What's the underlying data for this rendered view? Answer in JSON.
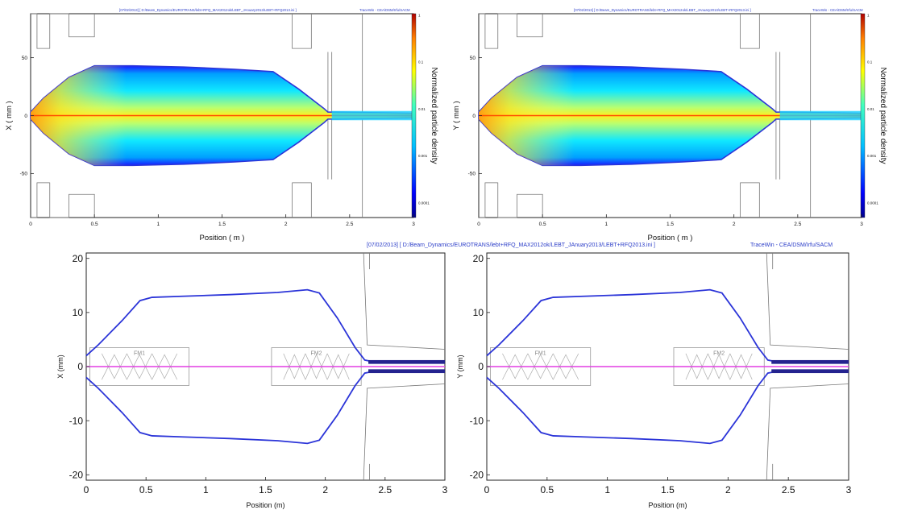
{
  "figure": {
    "header_date_path_small": "[07/02/2013] [ D:/Beam_Dynamics/EUROTRANS/lebt+RFQ_MAX2012ok/LEBT_JAnuary2013/LEBT+RFQ2013.ini ]",
    "header_program_small": "TraceWin - CEA/DSM/Irfu/SACM",
    "header_date_path": "[07/02/2013] [ D:/Beam_Dynamics/EUROTRANS/lebt+RFQ_MAX2012ok/LEBT_JAnuary2013/LEBT+RFQ2013.ini ]",
    "header_program": "TraceWin - CEA/DSM/Irfu/SACM",
    "colorbar_label": "Normalized particle density",
    "colorbar_ticks": [
      "1",
      "0.1",
      "0.01",
      "0.001",
      "0.0001"
    ],
    "element_labels": [
      "FM1",
      "FM2"
    ],
    "colors": {
      "envelope": "#2b34d8",
      "axis_line": "#e23fe3",
      "header_text": "#2a3cc8",
      "chamber": "#777777"
    }
  },
  "chart_data": [
    {
      "type": "heatmap",
      "title": "",
      "xlabel": "Position ( m )",
      "ylabel": "X ( mm )",
      "xlim": [
        0,
        3
      ],
      "ylim": [
        -88,
        88
      ],
      "xticks": [
        0,
        0.5,
        1,
        1.5,
        2,
        2.5,
        3
      ],
      "yticks": [
        -50,
        0,
        50
      ],
      "colorbar": {
        "label": "Normalized particle density",
        "scale": "log",
        "range": [
          0.0001,
          1
        ]
      },
      "envelope_upper": {
        "x": [
          0,
          0.1,
          0.3,
          0.5,
          0.8,
          1.2,
          1.6,
          1.9,
          2.1,
          2.3,
          2.33,
          2.4,
          3.0
        ],
        "y": [
          3,
          15,
          33,
          43,
          43,
          42,
          40,
          38,
          23,
          6,
          3,
          3,
          2
        ]
      },
      "envelope_lower": {
        "x": [
          0,
          0.1,
          0.3,
          0.5,
          0.8,
          1.2,
          1.6,
          1.9,
          2.1,
          2.3,
          2.33,
          2.4,
          3.0
        ],
        "y": [
          -3,
          -15,
          -33,
          -43,
          -43,
          -42,
          -40,
          -38,
          -23,
          -6,
          -3,
          -3,
          -2
        ]
      }
    },
    {
      "type": "heatmap",
      "title": "",
      "xlabel": "Position ( m )",
      "ylabel": "Y ( mm )",
      "xlim": [
        0,
        3
      ],
      "ylim": [
        -88,
        88
      ],
      "xticks": [
        0,
        0.5,
        1,
        1.5,
        2,
        2.5,
        3
      ],
      "yticks": [
        -50,
        0,
        50
      ],
      "colorbar": {
        "label": "Normalized particle density",
        "scale": "log",
        "range": [
          0.0001,
          1
        ]
      },
      "envelope_upper": {
        "x": [
          0,
          0.1,
          0.3,
          0.5,
          0.8,
          1.2,
          1.6,
          1.9,
          2.1,
          2.3,
          2.33,
          2.4,
          3.0
        ],
        "y": [
          3,
          15,
          33,
          43,
          43,
          42,
          40,
          38,
          23,
          6,
          3,
          3,
          2
        ]
      },
      "envelope_lower": {
        "x": [
          0,
          0.1,
          0.3,
          0.5,
          0.8,
          1.2,
          1.6,
          1.9,
          2.1,
          2.3,
          2.33,
          2.4,
          3.0
        ],
        "y": [
          -3,
          -15,
          -33,
          -43,
          -43,
          -42,
          -40,
          -38,
          -23,
          -6,
          -3,
          -3,
          -2
        ]
      }
    },
    {
      "type": "line",
      "title": "",
      "xlabel": "Position (m)",
      "ylabel": "X (mm)",
      "xlim": [
        0,
        3
      ],
      "ylim": [
        -21,
        21
      ],
      "xticks": [
        0,
        0.5,
        1,
        1.5,
        2,
        2.5,
        3
      ],
      "yticks": [
        -20,
        -10,
        0,
        10,
        20
      ],
      "series": [
        {
          "x": [
            0,
            0.1,
            0.3,
            0.45,
            0.55,
            0.8,
            1.2,
            1.6,
            1.85,
            1.95,
            2.1,
            2.25,
            2.33,
            2.4,
            3.0
          ],
          "y": [
            2,
            4,
            8.5,
            12.2,
            12.8,
            13,
            13.3,
            13.7,
            14.2,
            13.6,
            9,
            3.5,
            1.2,
            0.9,
            0.9
          ]
        },
        {
          "x": [
            0,
            0.1,
            0.3,
            0.45,
            0.55,
            0.8,
            1.2,
            1.6,
            1.85,
            1.95,
            2.1,
            2.25,
            2.33,
            2.4,
            3.0
          ],
          "y": [
            -2,
            -4,
            -8.5,
            -12.2,
            -12.8,
            -13,
            -13.3,
            -13.7,
            -14.2,
            -13.6,
            -9,
            -3.5,
            -1.2,
            -0.9,
            -0.9
          ]
        }
      ]
    },
    {
      "type": "line",
      "title": "",
      "xlabel": "Position (m)",
      "ylabel": "Y (mm)",
      "xlim": [
        0,
        3
      ],
      "ylim": [
        -21,
        21
      ],
      "xticks": [
        0,
        0.5,
        1,
        1.5,
        2,
        2.5,
        3
      ],
      "yticks": [
        -20,
        -10,
        0,
        10,
        20
      ],
      "series": [
        {
          "x": [
            0,
            0.1,
            0.3,
            0.45,
            0.55,
            0.8,
            1.2,
            1.6,
            1.85,
            1.95,
            2.1,
            2.25,
            2.33,
            2.4,
            3.0
          ],
          "y": [
            2,
            4,
            8.5,
            12.2,
            12.8,
            13,
            13.3,
            13.7,
            14.2,
            13.6,
            9,
            3.5,
            1.2,
            0.9,
            0.9
          ]
        },
        {
          "x": [
            0,
            0.1,
            0.3,
            0.45,
            0.55,
            0.8,
            1.2,
            1.6,
            1.85,
            1.95,
            2.1,
            2.25,
            2.33,
            2.4,
            3.0
          ],
          "y": [
            -2,
            -4,
            -8.5,
            -12.2,
            -12.8,
            -13,
            -13.3,
            -13.7,
            -14.2,
            -13.6,
            -9,
            -3.5,
            -1.2,
            -0.9,
            -0.9
          ]
        }
      ]
    }
  ]
}
